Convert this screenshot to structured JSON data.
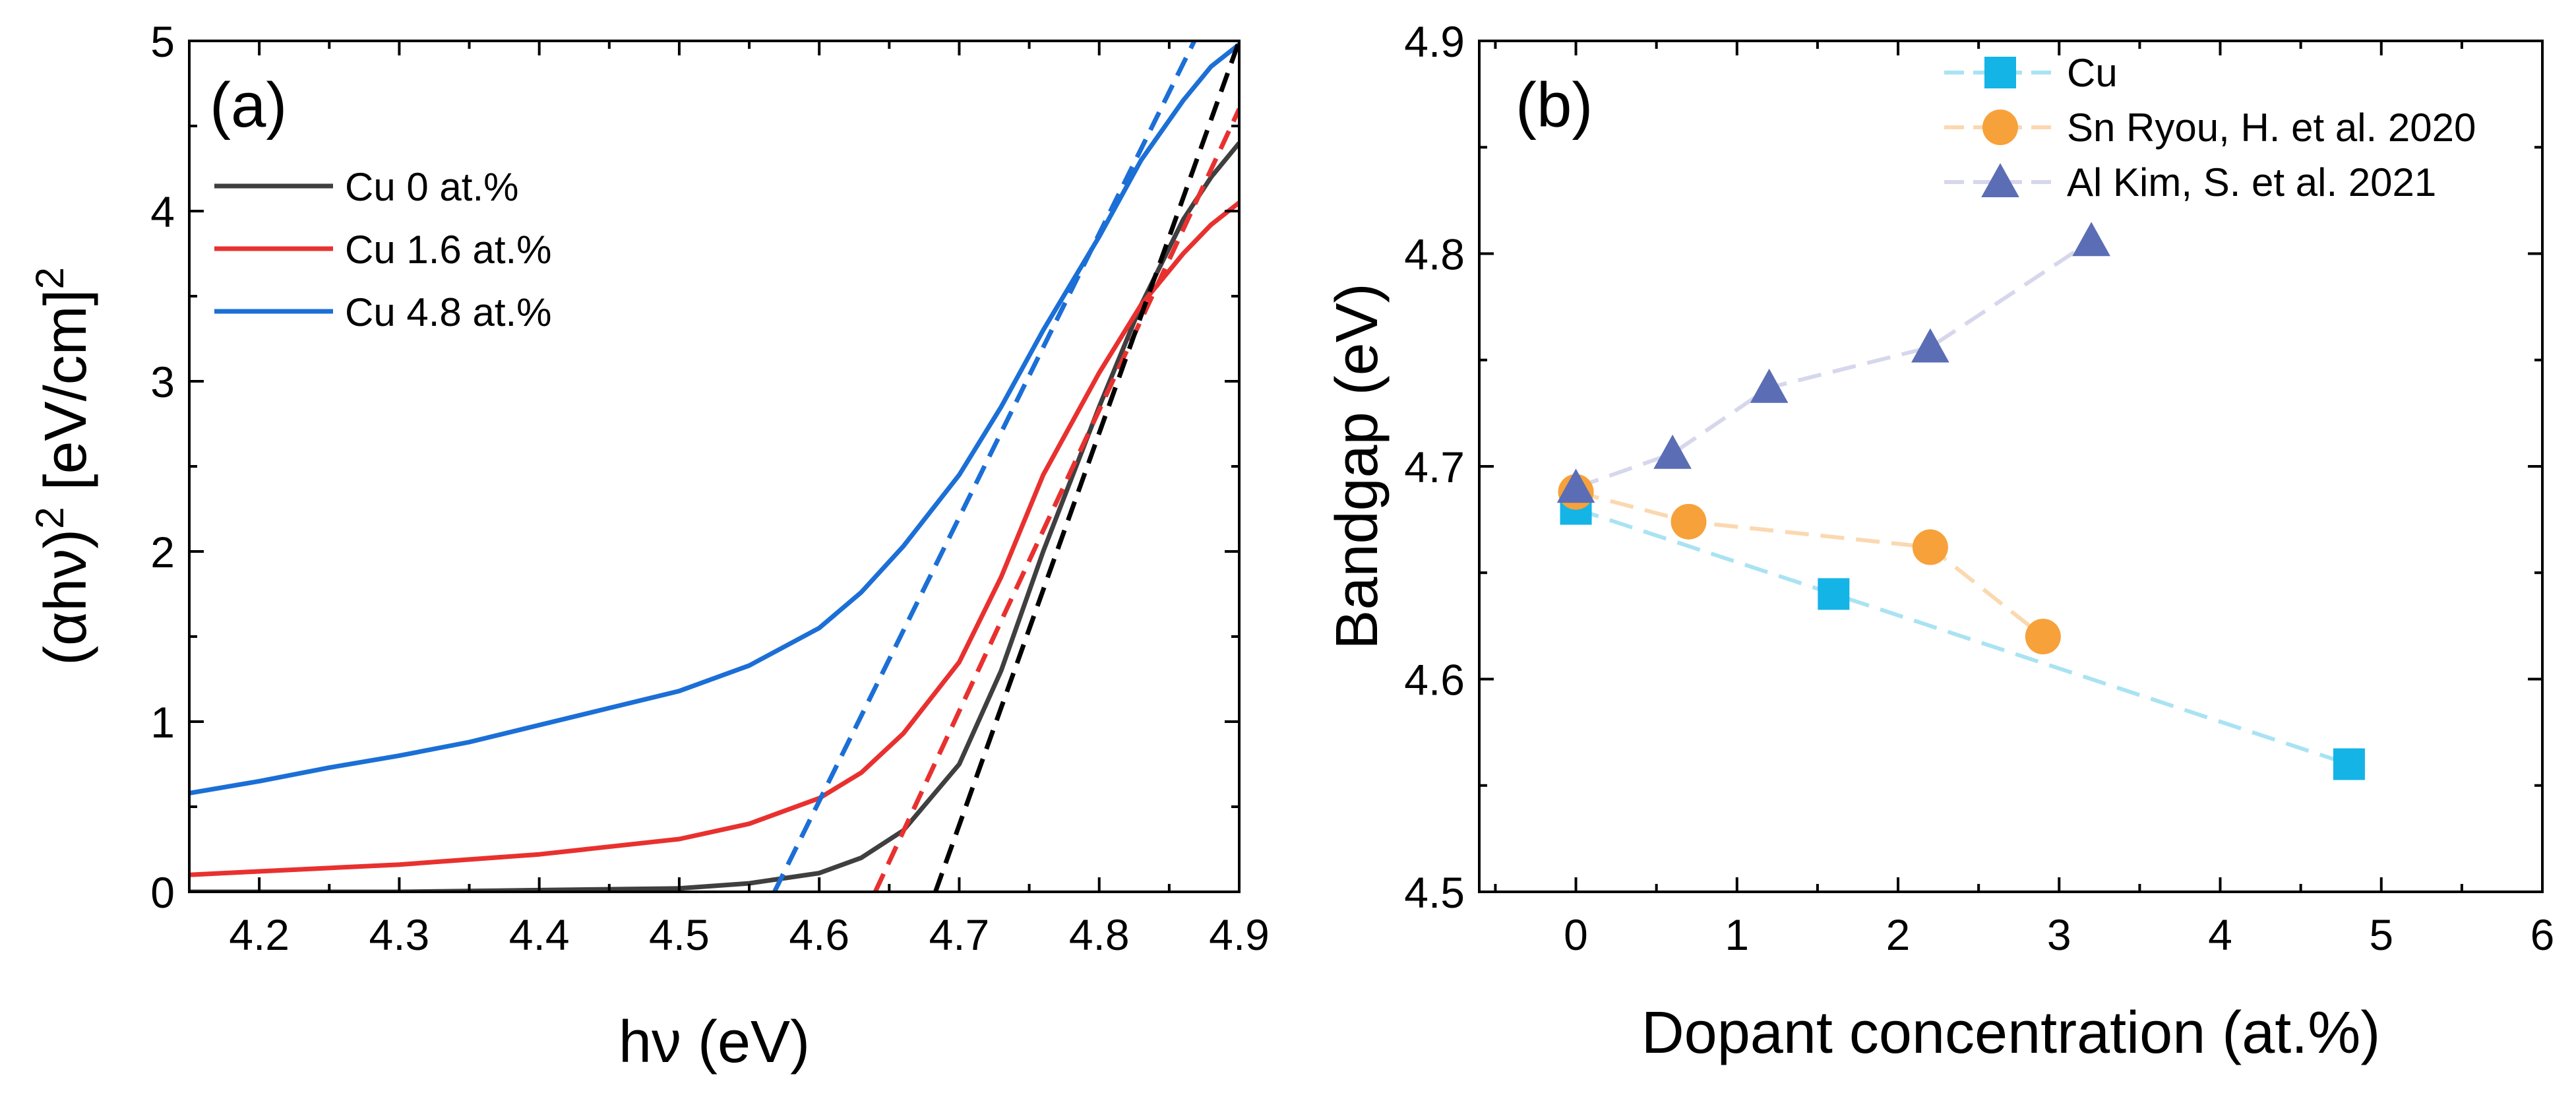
{
  "chart_data": [
    {
      "type": "line",
      "panel_label": "(a)",
      "xlabel": "hν (eV)",
      "ylabel_main": "(αhν)",
      "ylabel_sup1": "2",
      "ylabel_unit": " [eV/cm]",
      "ylabel_sup2": "2",
      "xlim": [
        4.15,
        4.9
      ],
      "ylim": [
        0,
        5
      ],
      "xticks": [
        4.2,
        4.3,
        4.4,
        4.5,
        4.6,
        4.7,
        4.8,
        4.9
      ],
      "xtick_labels": [
        "4.2",
        "4.3",
        "4.4",
        "4.5",
        "4.6",
        "4.7",
        "4.8",
        "4.9"
      ],
      "yticks": [
        0,
        1,
        2,
        3,
        4,
        5
      ],
      "ytick_labels": [
        "0",
        "1",
        "2",
        "3",
        "4",
        "5"
      ],
      "legend_position": "top-left",
      "series": [
        {
          "name": "Cu 0 at.%",
          "color": "#3f3f3f",
          "x": [
            4.15,
            4.3,
            4.4,
            4.5,
            4.55,
            4.6,
            4.63,
            4.66,
            4.7,
            4.73,
            4.76,
            4.8,
            4.83,
            4.86,
            4.88,
            4.9
          ],
          "y": [
            0.0,
            0.0,
            0.01,
            0.02,
            0.05,
            0.11,
            0.2,
            0.36,
            0.75,
            1.3,
            2.0,
            2.85,
            3.45,
            3.95,
            4.2,
            4.4
          ]
        },
        {
          "name": "Cu 1.6 at.%",
          "color": "#e8312f",
          "x": [
            4.15,
            4.2,
            4.3,
            4.4,
            4.5,
            4.55,
            4.6,
            4.63,
            4.66,
            4.7,
            4.73,
            4.76,
            4.8,
            4.83,
            4.86,
            4.88,
            4.9
          ],
          "y": [
            0.1,
            0.12,
            0.16,
            0.22,
            0.31,
            0.4,
            0.55,
            0.7,
            0.93,
            1.35,
            1.85,
            2.45,
            3.05,
            3.45,
            3.75,
            3.92,
            4.05
          ]
        },
        {
          "name": "Cu 4.8 at.%",
          "color": "#1b6fd6",
          "x": [
            4.15,
            4.2,
            4.25,
            4.3,
            4.35,
            4.4,
            4.45,
            4.5,
            4.55,
            4.6,
            4.63,
            4.66,
            4.7,
            4.73,
            4.76,
            4.8,
            4.83,
            4.86,
            4.88,
            4.9
          ],
          "y": [
            0.58,
            0.65,
            0.73,
            0.8,
            0.88,
            0.98,
            1.08,
            1.18,
            1.33,
            1.55,
            1.76,
            2.03,
            2.45,
            2.85,
            3.3,
            3.85,
            4.3,
            4.65,
            4.85,
            4.98
          ]
        }
      ],
      "fit_lines": [
        {
          "color": "#1b6fd6",
          "x": [
            4.568,
            4.868
          ],
          "y": [
            0.0,
            5.0
          ]
        },
        {
          "color": "#e8312f",
          "x": [
            4.64,
            4.9
          ],
          "y": [
            0.0,
            4.6
          ]
        },
        {
          "color": "#000000",
          "x": [
            4.683,
            4.9
          ],
          "y": [
            0.0,
            5.0
          ]
        }
      ]
    },
    {
      "type": "line",
      "panel_label": "(b)",
      "xlabel": "Dopant concentration (at.%)",
      "ylabel": "Bandgap (eV)",
      "xlim": [
        -0.6,
        6
      ],
      "ylim": [
        4.5,
        4.9
      ],
      "xticks": [
        0,
        1,
        2,
        3,
        4,
        5,
        6
      ],
      "xtick_labels": [
        "0",
        "1",
        "2",
        "3",
        "4",
        "5",
        "6"
      ],
      "yticks": [
        4.5,
        4.6,
        4.7,
        4.8,
        4.9
      ],
      "ytick_labels": [
        "4.5",
        "4.6",
        "4.7",
        "4.8",
        "4.9"
      ],
      "legend_position": "top-right",
      "series": [
        {
          "name": "Cu",
          "marker": "square",
          "color": "#14b4e6",
          "line_color": "#a9e3f3",
          "x": [
            0,
            1.6,
            4.8
          ],
          "y": [
            4.68,
            4.64,
            4.56
          ]
        },
        {
          "name": "Sn Ryou, H. et al. 2020",
          "marker": "circle",
          "color": "#f7a13a",
          "line_color": "#fbd8b0",
          "x": [
            0,
            0.7,
            2.2,
            2.9
          ],
          "y": [
            4.688,
            4.674,
            4.662,
            4.62
          ]
        },
        {
          "name": "Al Kim, S. et al. 2021",
          "marker": "triangle",
          "color": "#5b6db5",
          "line_color": "#d6d7ec",
          "x": [
            0,
            0.6,
            1.2,
            2.2,
            3.2
          ],
          "y": [
            4.69,
            4.706,
            4.737,
            4.756,
            4.806
          ]
        }
      ]
    }
  ]
}
